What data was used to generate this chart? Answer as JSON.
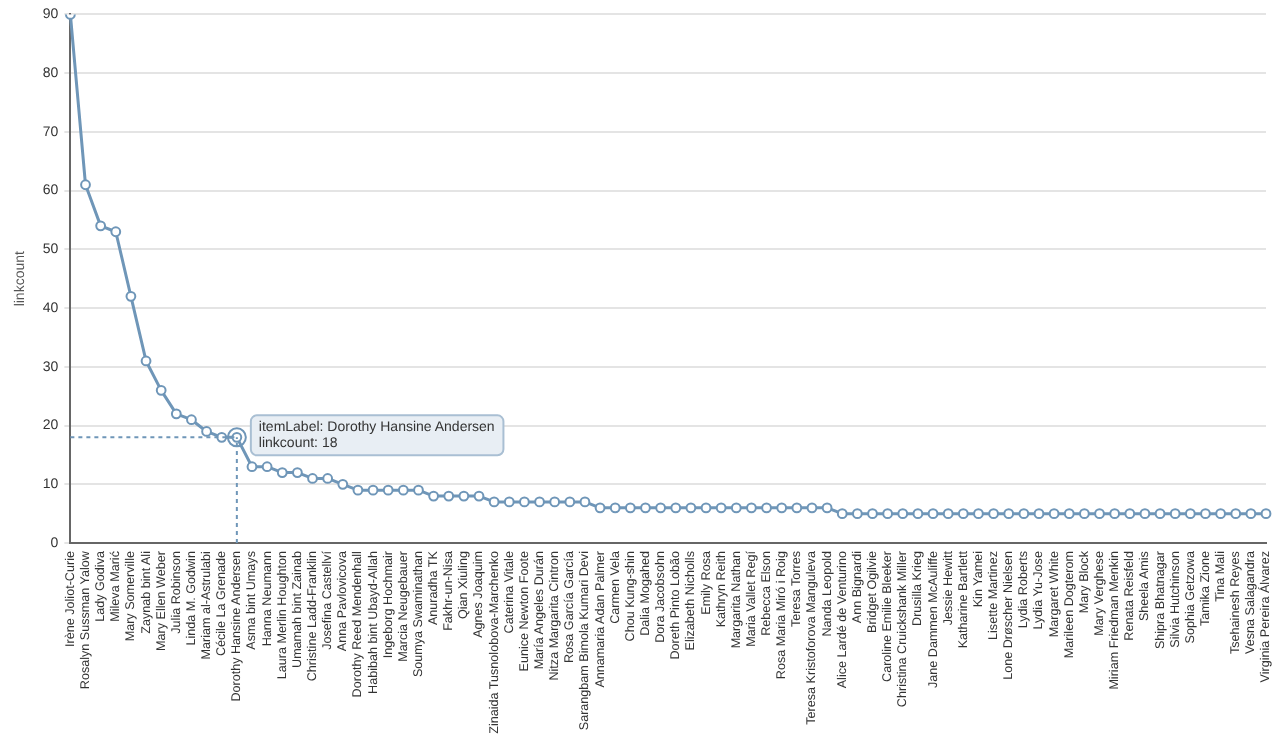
{
  "chart_data": {
    "type": "line",
    "ylabel": "linkcount",
    "categories": [
      "Irène Joliot-Curie",
      "Rosalyn Sussman Yalow",
      "Lady Godiva",
      "Mileva Marić",
      "Mary Somerville",
      "Zaynab bint Ali",
      "Mary Ellen Weber",
      "Julia Robinson",
      "Linda M. Godwin",
      "Mariam al-Astrulabi",
      "Cécile La Grenade",
      "Dorothy Hansine Andersen",
      "Asma bint Umays",
      "Hanna Neumann",
      "Laura Merlin Houghton",
      "Umamah bint Zainab",
      "Christine Ladd-Franklin",
      "Josefina Castellví",
      "Anna Pavlovicova",
      "Dorothy Reed Mendenhall",
      "Habibah bint Ubayd-Allah",
      "Ingeborg Hochmair",
      "Marcia Neugebauer",
      "Soumya Swaminathan",
      "Anuradha TK",
      "Fakhr-un-Nisa",
      "Qian Xiuling",
      "Agnes Joaquim",
      "Zinaida Tusnolobova-Marchenko",
      "Caterina Vitale",
      "Eunice Newton Foote",
      "María Angeles Durán",
      "Nitza Margarita Cintron",
      "Rosa García García",
      "Sarangbam Bimola Kumari Devi",
      "Annamaria Adan Palmer",
      "Carmen Vela",
      "Chou Kung-shin",
      "Dalia Mogahed",
      "Dora Jacobsohn",
      "Doreth Pinto Lobão",
      "Elizabeth Nicholls",
      "Emily Rosa",
      "Kathryn Reith",
      "Margarita Nathan",
      "Maria Vallet Regí",
      "Rebecca Elson",
      "Rosa Maria Miró i Roig",
      "Teresa Torres",
      "Teresa Kristoforova Manguleva",
      "Nanda Leopold",
      "Alice Lardé de Venturino",
      "Ann Bignardi",
      "Bridget Ogilvie",
      "Caroline Emilie Bleeker",
      "Christina Cruickshank Miller",
      "Drusilla Krieg",
      "Jane Dammen McAuliffe",
      "Jessie Hewitt",
      "Katharine Bartlett",
      "Kin Yamei",
      "Lisette Martinez",
      "Lone Drøscher Nielsen",
      "Lydia Roberts",
      "Lydia Yu-Jose",
      "Margaret White",
      "Marileen Dogterom",
      "Mary Block",
      "Mary Verghese",
      "Miriam Friedman Menkin",
      "Renata Reisfeld",
      "Sheela Amis",
      "Shipra Bhatnagar",
      "Silvia Hutchinson",
      "Sophia Getzowa",
      "Tamika Zione",
      "Tina Mali",
      "Tsehainesh Reyes",
      "Vesna Salagandra",
      "Virginia Pereira Álvarez"
    ],
    "series": [
      {
        "color": "#6f96b8",
        "values": [
          90,
          61,
          54,
          53,
          42,
          31,
          26,
          22,
          21,
          19,
          18,
          18,
          13,
          13,
          12,
          12,
          11,
          11,
          10,
          9,
          9,
          9,
          9,
          9,
          8,
          8,
          8,
          8,
          7,
          7,
          7,
          7,
          7,
          7,
          7,
          6,
          6,
          6,
          6,
          6,
          6,
          6,
          6,
          6,
          6,
          6,
          6,
          6,
          6,
          6,
          6,
          5,
          5,
          5,
          5,
          5,
          5,
          5,
          5,
          5,
          5,
          5,
          5,
          5,
          5,
          5,
          5,
          5,
          5,
          5,
          5,
          5,
          5,
          5,
          5,
          5,
          5,
          5,
          5,
          5
        ]
      }
    ],
    "ylim": [
      0,
      90
    ],
    "yticks": [
      0,
      10,
      20,
      30,
      40,
      50,
      60,
      70,
      80,
      90
    ],
    "grid": "y",
    "legend": false,
    "marker": "circle",
    "line_style": "solid",
    "ref_lines": [
      {
        "axis": "y",
        "value": 18,
        "line_style": "dotted"
      },
      {
        "axis": "x",
        "value": "Dorothy Hansine Andersen",
        "line_style": "dotted"
      }
    ],
    "annotations": [
      {
        "text": "itemLabel: Dorothy Hansine Andersen\nlinkcount: 18",
        "x": "Dorothy Hansine Andersen",
        "y": 18
      }
    ]
  }
}
